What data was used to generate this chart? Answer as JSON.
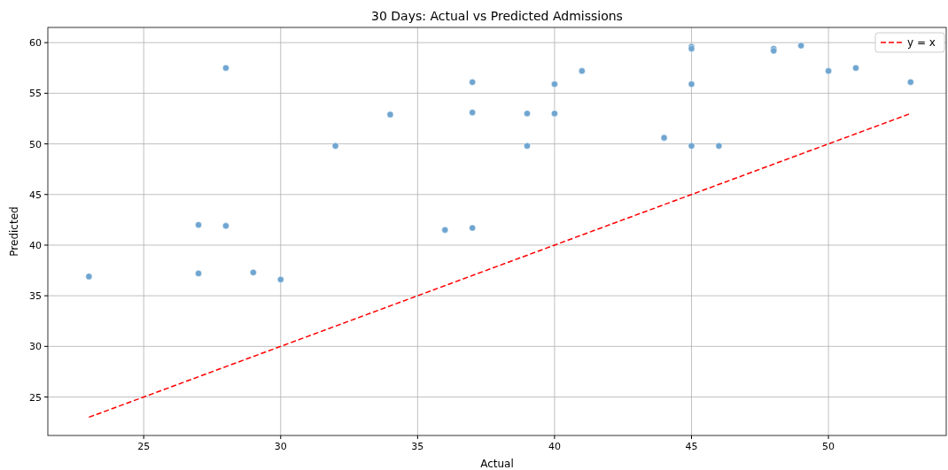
{
  "chart_data": {
    "type": "scatter",
    "title": "30 Days: Actual vs Predicted Admissions",
    "xlabel": "Actual",
    "ylabel": "Predicted",
    "xlim": [
      21.5,
      54.3
    ],
    "ylim": [
      21.2,
      61.5
    ],
    "xticks": [
      25,
      30,
      35,
      40,
      45,
      50
    ],
    "yticks": [
      25,
      30,
      35,
      40,
      45,
      50,
      55,
      60
    ],
    "grid": true,
    "legend": "top right",
    "marker": "circle",
    "series": [
      {
        "color": "#6fa5d0",
        "x": [
          23,
          27,
          27,
          28,
          28,
          29,
          30,
          32,
          34,
          36,
          37,
          37,
          37,
          39,
          39,
          40,
          40,
          41,
          44,
          45,
          45,
          45,
          45,
          46,
          48,
          48,
          49,
          50,
          51,
          53
        ],
        "values": [
          36.9,
          42.0,
          37.2,
          57.5,
          41.9,
          37.3,
          36.6,
          49.8,
          52.9,
          41.5,
          56.1,
          53.1,
          41.7,
          53.0,
          49.8,
          55.9,
          53.0,
          57.2,
          50.6,
          59.6,
          59.4,
          55.9,
          49.8,
          49.8,
          59.4,
          59.2,
          59.7,
          57.2,
          57.5,
          56.1
        ]
      },
      {
        "type": "line",
        "name": "y = x",
        "color": "#ff0000",
        "line_style": "dashed",
        "marker": "none",
        "x": [
          23,
          53
        ],
        "values": [
          23,
          53
        ]
      }
    ]
  }
}
